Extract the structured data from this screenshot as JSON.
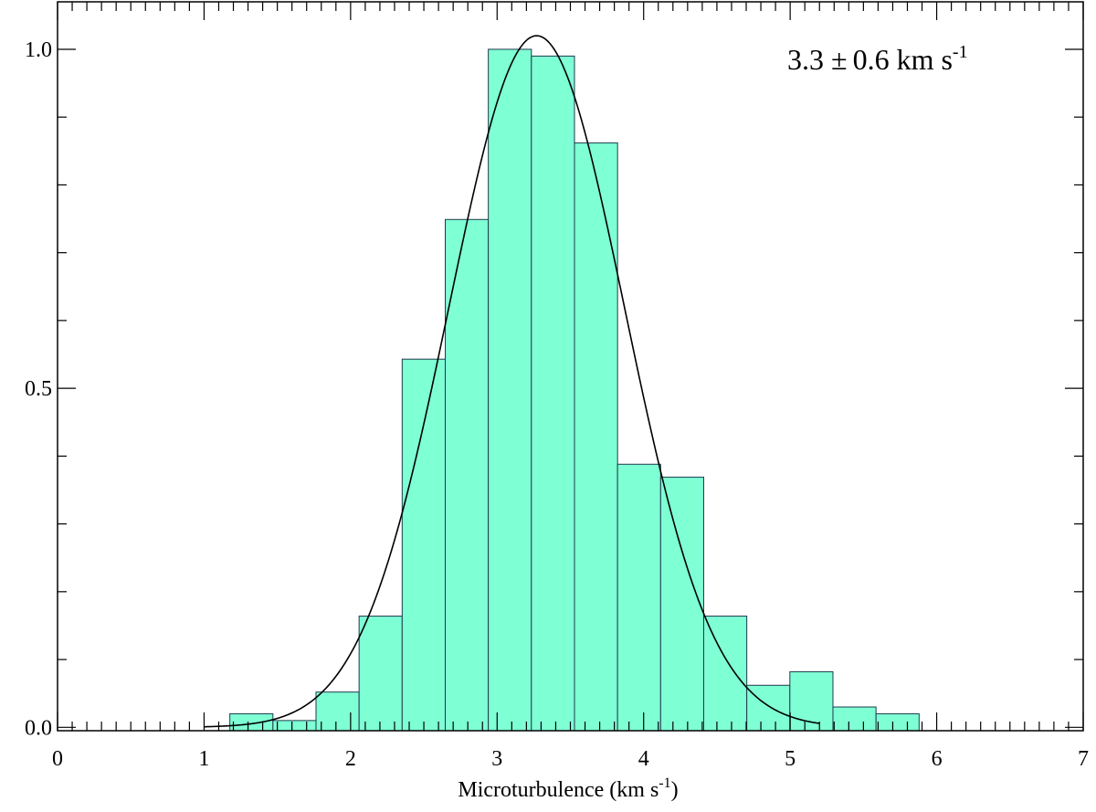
{
  "chart_data": {
    "type": "bar",
    "bin_width": 0.294,
    "bins": [
      {
        "x": 1.176,
        "y": 0.02
      },
      {
        "x": 1.47,
        "y": 0.01
      },
      {
        "x": 1.764,
        "y": 0.052
      },
      {
        "x": 2.058,
        "y": 0.164
      },
      {
        "x": 2.352,
        "y": 0.543
      },
      {
        "x": 2.646,
        "y": 0.749
      },
      {
        "x": 2.94,
        "y": 1.0
      },
      {
        "x": 3.234,
        "y": 0.99
      },
      {
        "x": 3.528,
        "y": 0.862
      },
      {
        "x": 3.822,
        "y": 0.388
      },
      {
        "x": 4.116,
        "y": 0.369
      },
      {
        "x": 4.41,
        "y": 0.164
      },
      {
        "x": 4.704,
        "y": 0.062
      },
      {
        "x": 4.998,
        "y": 0.082
      },
      {
        "x": 5.292,
        "y": 0.03
      },
      {
        "x": 5.586,
        "y": 0.02
      }
    ],
    "fit": {
      "type": "gaussian",
      "mean": 3.27,
      "sigma": 0.6,
      "amplitude": 1.02
    },
    "annotation": {
      "value": "3.3",
      "pm": "±",
      "err": "0.6",
      "unit": "km s",
      "sup": "-1"
    },
    "xlabel": {
      "text": "Microturbulence (km s",
      "sup": "-1",
      "close": ")"
    },
    "ylabel": "",
    "xlim": [
      0,
      7
    ],
    "ylim": [
      -0.005,
      1.07
    ],
    "xticks": [
      0,
      1,
      2,
      3,
      4,
      5,
      6,
      7
    ],
    "xtick_labels": [
      "0",
      "1",
      "2",
      "3",
      "4",
      "5",
      "6",
      "7"
    ],
    "yticks": [
      0.0,
      0.5,
      1.0
    ],
    "ytick_labels": [
      "0.0",
      "0.5",
      "1.0"
    ],
    "x_minor_step": 0.1,
    "y_minor_step": 0.1,
    "grid": false,
    "colors": {
      "bar_fill": "#7fffd4",
      "bar_edge": "#1f3a4d",
      "line": "#000000",
      "axis": "#000000"
    }
  }
}
